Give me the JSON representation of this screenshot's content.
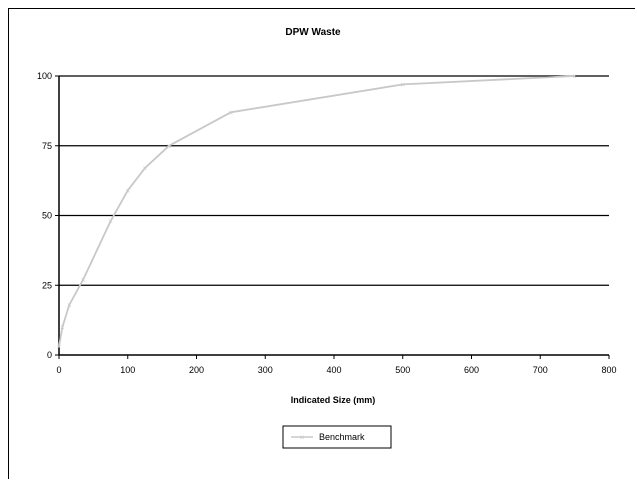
{
  "chart_data": {
    "type": "line",
    "title": "DPW Waste",
    "xlabel": "Indicated Size (mm)",
    "ylabel": "",
    "xlim": [
      0,
      800
    ],
    "ylim": [
      0,
      100
    ],
    "x_ticks": [
      0,
      100,
      200,
      300,
      400,
      500,
      600,
      700,
      800
    ],
    "y_ticks": [
      0,
      25,
      50,
      75,
      100
    ],
    "grid": "horizontal",
    "legend": "bottom-center",
    "series": [
      {
        "name": "Benchmark",
        "color": "#c8c8c8",
        "x": [
          0,
          5,
          15,
          35,
          75,
          100,
          125,
          160,
          250,
          500,
          750
        ],
        "y": [
          3,
          10,
          18,
          27,
          48,
          59,
          67,
          75,
          87,
          97,
          100
        ]
      }
    ]
  }
}
